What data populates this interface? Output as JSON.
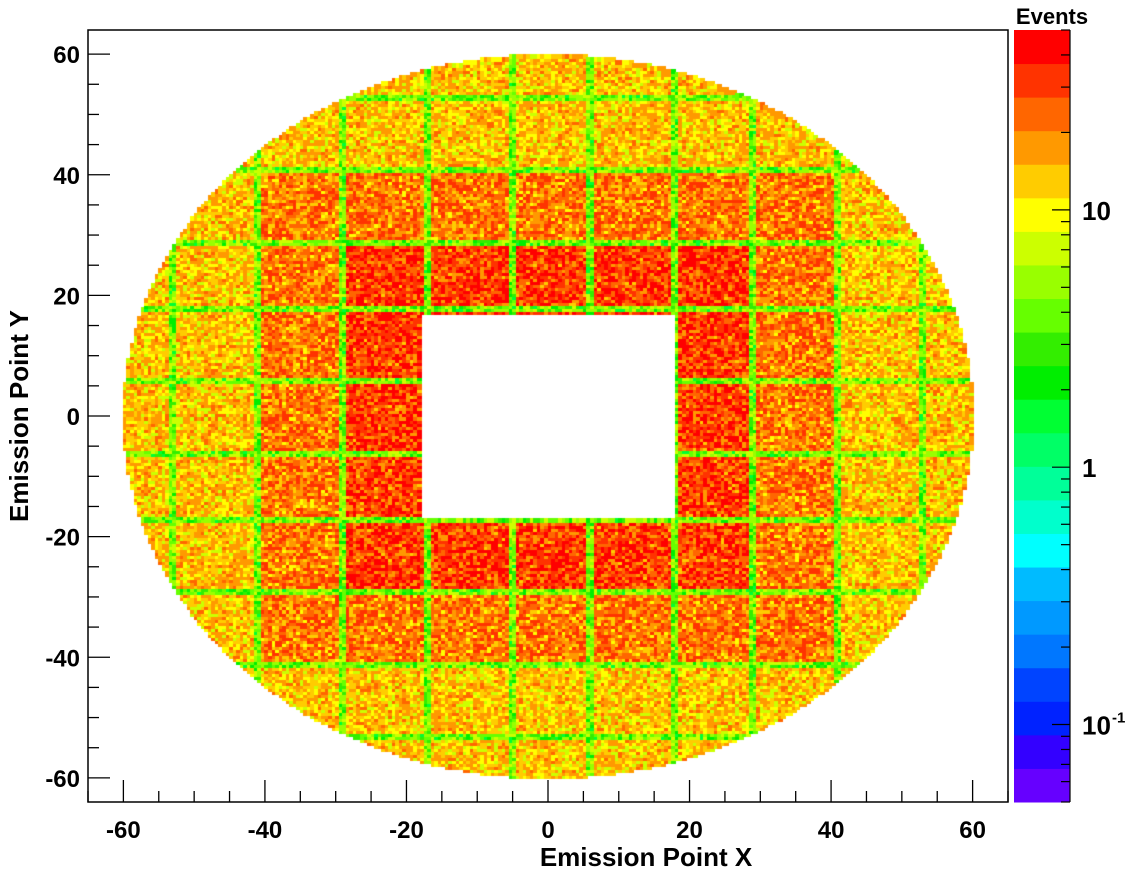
{
  "chart_data": {
    "type": "heatmap",
    "title": "",
    "xlabel": "Emission Point X",
    "ylabel": "Emission Point Y",
    "xlim": [
      -65,
      65
    ],
    "ylim": [
      -64,
      64
    ],
    "x_ticks": [
      -60,
      -40,
      -20,
      0,
      20,
      40,
      60
    ],
    "y_ticks": [
      -60,
      -40,
      -20,
      0,
      20,
      40,
      60
    ],
    "x_tick_labels": [
      "-60",
      "-40",
      "-20",
      "0",
      "20",
      "40",
      "60"
    ],
    "y_tick_labels": [
      "-60",
      "-40",
      "-20",
      "0",
      "20",
      "40",
      "60"
    ],
    "z_scale": "log",
    "z_title": "Events",
    "z_range": [
      0.05,
      50
    ],
    "z_ticks": [
      0.1,
      1,
      10
    ],
    "z_tick_labels": [
      {
        "base": "10",
        "exp": "-1"
      },
      {
        "base": "1",
        "exp": ""
      },
      {
        "base": "10",
        "exp": ""
      }
    ],
    "palette": [
      "#6600ff",
      "#3300ff",
      "#0022ff",
      "#0044ff",
      "#0077ff",
      "#0099ff",
      "#00bbff",
      "#00ffff",
      "#00ffcc",
      "#00ff99",
      "#00ff66",
      "#00ff33",
      "#00ee00",
      "#33ee00",
      "#66ff00",
      "#99ff00",
      "#ccff00",
      "#ffff00",
      "#ffcc00",
      "#ff9900",
      "#ff6600",
      "#ff3300",
      "#ff0000"
    ],
    "grid": false,
    "legend": "none",
    "region": {
      "shape": "ellipse",
      "center": [
        0,
        0
      ],
      "semi_axis_x": 60,
      "semi_axis_y": 60,
      "hole": {
        "x": [
          -18,
          18
        ],
        "y": [
          -17,
          17
        ]
      }
    },
    "module_grid": {
      "x_gaps": [
        -53,
        -41,
        -29,
        -17,
        -5,
        6,
        18,
        29,
        41,
        53
      ],
      "y_gaps": [
        -53,
        -41,
        -29,
        -17,
        -6,
        6,
        18,
        29,
        41,
        53
      ]
    },
    "module_intensity": {
      "description_levels": "events per bin in module interior by ring",
      "ring_inner": 32,
      "ring_second": 22,
      "ring_outer": 14,
      "gap": 4
    }
  }
}
